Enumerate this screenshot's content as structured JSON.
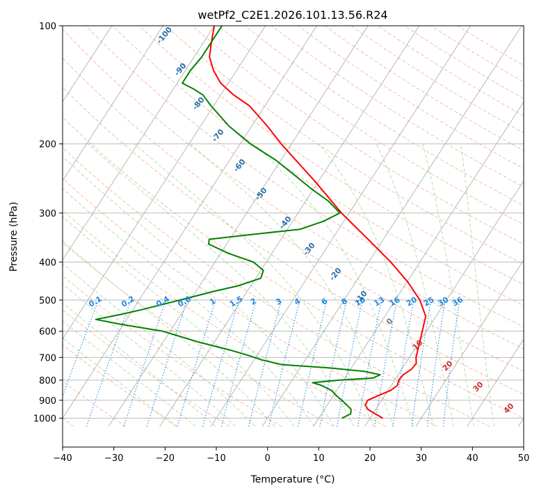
{
  "chart_data": {
    "type": "skew-t log-p sounding",
    "title": "wetPf2_C2E1.2026.101.13.56.R24",
    "xlabel": "Temperature (°C)",
    "ylabel": "Pressure (hPa)",
    "xlim": [
      -40,
      50
    ],
    "ylim_hpa": [
      1050,
      100
    ],
    "log_pressure_axis": true,
    "grid": true,
    "x_ticks": [
      -40,
      -30,
      -20,
      -10,
      0,
      10,
      20,
      30,
      40,
      50
    ],
    "y_ticks": [
      100,
      200,
      300,
      400,
      500,
      600,
      700,
      800,
      900,
      1000
    ],
    "series": [
      {
        "role": "temperature",
        "color": "#ff0000",
        "points": [
          [
            1000,
            22.5
          ],
          [
            975,
            20.5
          ],
          [
            950,
            18.5
          ],
          [
            925,
            17.4
          ],
          [
            900,
            17.3
          ],
          [
            875,
            18.8
          ],
          [
            850,
            20.5
          ],
          [
            825,
            21.2
          ],
          [
            800,
            20.8
          ],
          [
            775,
            21.0
          ],
          [
            750,
            21.9
          ],
          [
            725,
            22.1
          ],
          [
            700,
            21.3
          ],
          [
            650,
            20.3
          ],
          [
            600,
            19.2
          ],
          [
            550,
            18.0
          ],
          [
            500,
            14.8
          ],
          [
            450,
            10.2
          ],
          [
            400,
            4.3
          ],
          [
            350,
            -3.0
          ],
          [
            300,
            -11.5
          ],
          [
            250,
            -20.5
          ],
          [
            200,
            -32.0
          ],
          [
            180,
            -37.0
          ],
          [
            160,
            -43.0
          ],
          [
            150,
            -47.5
          ],
          [
            140,
            -51.5
          ],
          [
            130,
            -54.5
          ],
          [
            120,
            -57.0
          ],
          [
            110,
            -58.5
          ],
          [
            100,
            -60.0
          ]
        ]
      },
      {
        "role": "dewpoint",
        "color": "#008000",
        "points": [
          [
            1000,
            14.5
          ],
          [
            975,
            15.7
          ],
          [
            950,
            15.2
          ],
          [
            925,
            13.8
          ],
          [
            900,
            12.2
          ],
          [
            875,
            10.5
          ],
          [
            850,
            9.0
          ],
          [
            825,
            6.4
          ],
          [
            812,
            4.3
          ],
          [
            800,
            9.0
          ],
          [
            790,
            15.5
          ],
          [
            775,
            16.5
          ],
          [
            760,
            13.0
          ],
          [
            745,
            6.0
          ],
          [
            730,
            -4.0
          ],
          [
            710,
            -8.5
          ],
          [
            690,
            -12.0
          ],
          [
            670,
            -16.0
          ],
          [
            640,
            -23.0
          ],
          [
            600,
            -31.5
          ],
          [
            575,
            -41.0
          ],
          [
            560,
            -46.0
          ],
          [
            545,
            -42.0
          ],
          [
            530,
            -38.5
          ],
          [
            500,
            -32.0
          ],
          [
            475,
            -26.5
          ],
          [
            460,
            -22.5
          ],
          [
            440,
            -19.0
          ],
          [
            420,
            -19.5
          ],
          [
            400,
            -22.5
          ],
          [
            380,
            -28.5
          ],
          [
            360,
            -33.5
          ],
          [
            350,
            -34.0
          ],
          [
            340,
            -26.0
          ],
          [
            330,
            -17.5
          ],
          [
            315,
            -14.0
          ],
          [
            300,
            -11.8
          ],
          [
            280,
            -15.5
          ],
          [
            260,
            -20.5
          ],
          [
            240,
            -25.5
          ],
          [
            220,
            -31.0
          ],
          [
            200,
            -38.0
          ],
          [
            180,
            -44.5
          ],
          [
            160,
            -50.5
          ],
          [
            150,
            -53.5
          ],
          [
            145,
            -56.0
          ],
          [
            140,
            -59.0
          ],
          [
            130,
            -59.0
          ],
          [
            120,
            -58.5
          ],
          [
            110,
            -58.5
          ],
          [
            100,
            -58.5
          ]
        ]
      }
    ],
    "mixing_ratio_labels": [
      "0.1",
      "0.2",
      "0.4",
      "0.6",
      "1",
      "1.5",
      "2",
      "3",
      "4",
      "6",
      "8",
      "10",
      "13",
      "16",
      "20",
      "25",
      "30",
      "36"
    ],
    "dry_adiabat_labels": [
      "-100",
      "-90",
      "-80",
      "-70",
      "-60",
      "-50",
      "-40",
      "-30",
      "-20",
      "-10",
      "0"
    ],
    "moist_adiabat_labels": [
      "10",
      "20",
      "30",
      "40"
    ]
  },
  "colors": {
    "temperature": "#ff0000",
    "dewpoint": "#008000",
    "isotherm_grid": "#b0b0b0",
    "dry_adiabat": "#f4a582",
    "moist_adiabat": "#a6d8a0",
    "mixing_ratio": "#1e88e5"
  }
}
